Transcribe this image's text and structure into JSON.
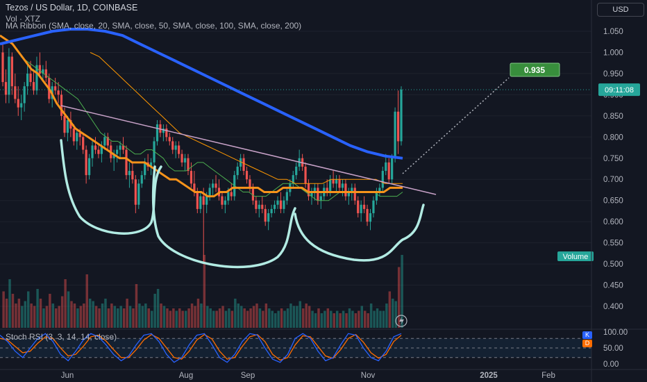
{
  "header": {
    "title": "Tezos / US Dollar, 1D, COINBASE",
    "volume_label": "Vol · XTZ",
    "ma_label": "MA Ribbon (SMA, close, 20, SMA, close, 50, SMA, close, 100, SMA, close, 200)",
    "currency_button": "USD"
  },
  "indicator": {
    "stoch_label": "Stoch RSI (3, 3, 14, 14, close)",
    "k_badge": "K",
    "d_badge": "D"
  },
  "colors": {
    "background": "#131722",
    "up": "#26a69a",
    "down": "#ef5350",
    "ma20": "#4caf50",
    "ma50": "#f7931a",
    "ma100": "#ff9800",
    "ma200": "#2962ff",
    "pattern": "#b2ebe3",
    "trendline": "#c8a2c8",
    "target": "#4caf50",
    "stoch_k": "#2962ff",
    "stoch_d": "#ff6d00"
  },
  "chart_data": {
    "type": "candlestick",
    "price_axis": {
      "ticks": [
        "1.050",
        "1.000",
        "0.950",
        "0.900",
        "0.850",
        "0.800",
        "0.750",
        "0.700",
        "0.650",
        "0.600",
        "0.550",
        "0.500",
        "0.450",
        "0.400"
      ],
      "ylim": [
        0.4,
        1.05
      ]
    },
    "time_axis": {
      "ticks": [
        "Jun",
        "Aug",
        "Sep",
        "Nov",
        "2025",
        "Feb"
      ]
    },
    "price_labels": {
      "target": "0.935",
      "countdown": "09:11:08",
      "current_price": 0.912,
      "volume_tag": "Volume"
    },
    "ohlc": [
      [
        1.0,
        1.02,
        0.92,
        0.93
      ],
      [
        0.93,
        0.96,
        0.88,
        0.9
      ],
      [
        0.9,
        1.01,
        0.88,
        0.99
      ],
      [
        0.99,
        1.0,
        0.9,
        0.92
      ],
      [
        0.92,
        0.95,
        0.88,
        0.89
      ],
      [
        0.89,
        0.92,
        0.85,
        0.87
      ],
      [
        0.87,
        0.9,
        0.84,
        0.88
      ],
      [
        0.88,
        0.93,
        0.86,
        0.92
      ],
      [
        0.92,
        0.97,
        0.9,
        0.95
      ],
      [
        0.95,
        0.98,
        0.92,
        0.93
      ],
      [
        0.93,
        0.96,
        0.9,
        0.91
      ],
      [
        0.91,
        0.99,
        0.9,
        0.97
      ],
      [
        0.97,
        1.0,
        0.94,
        0.95
      ],
      [
        0.95,
        0.97,
        0.93,
        0.96
      ],
      [
        0.96,
        0.98,
        0.93,
        0.94
      ],
      [
        0.94,
        0.95,
        0.88,
        0.89
      ],
      [
        0.89,
        0.93,
        0.87,
        0.92
      ],
      [
        0.92,
        0.94,
        0.9,
        0.91
      ],
      [
        0.91,
        0.93,
        0.88,
        0.9
      ],
      [
        0.9,
        0.91,
        0.84,
        0.85
      ],
      [
        0.85,
        0.87,
        0.8,
        0.81
      ],
      [
        0.81,
        0.85,
        0.79,
        0.84
      ],
      [
        0.84,
        0.86,
        0.8,
        0.82
      ],
      [
        0.82,
        0.83,
        0.78,
        0.79
      ],
      [
        0.79,
        0.82,
        0.77,
        0.81
      ],
      [
        0.81,
        0.82,
        0.78,
        0.8
      ],
      [
        0.8,
        0.81,
        0.76,
        0.77
      ],
      [
        0.77,
        0.78,
        0.69,
        0.71
      ],
      [
        0.71,
        0.76,
        0.7,
        0.75
      ],
      [
        0.75,
        0.79,
        0.73,
        0.78
      ],
      [
        0.78,
        0.8,
        0.76,
        0.77
      ],
      [
        0.77,
        0.78,
        0.75,
        0.76
      ],
      [
        0.76,
        0.79,
        0.74,
        0.78
      ],
      [
        0.78,
        0.81,
        0.77,
        0.8
      ],
      [
        0.8,
        0.81,
        0.77,
        0.78
      ],
      [
        0.78,
        0.79,
        0.74,
        0.75
      ],
      [
        0.75,
        0.77,
        0.72,
        0.76
      ],
      [
        0.76,
        0.78,
        0.74,
        0.77
      ],
      [
        0.77,
        0.79,
        0.75,
        0.78
      ],
      [
        0.78,
        0.8,
        0.76,
        0.77
      ],
      [
        0.77,
        0.78,
        0.7,
        0.71
      ],
      [
        0.71,
        0.74,
        0.68,
        0.72
      ],
      [
        0.72,
        0.74,
        0.69,
        0.7
      ],
      [
        0.7,
        0.71,
        0.62,
        0.64
      ],
      [
        0.64,
        0.7,
        0.63,
        0.69
      ],
      [
        0.69,
        0.72,
        0.68,
        0.71
      ],
      [
        0.71,
        0.75,
        0.7,
        0.74
      ],
      [
        0.74,
        0.76,
        0.72,
        0.73
      ],
      [
        0.73,
        0.75,
        0.71,
        0.74
      ],
      [
        0.74,
        0.8,
        0.73,
        0.79
      ],
      [
        0.79,
        0.84,
        0.78,
        0.83
      ],
      [
        0.83,
        0.84,
        0.8,
        0.81
      ],
      [
        0.81,
        0.83,
        0.79,
        0.82
      ],
      [
        0.82,
        0.83,
        0.79,
        0.8
      ],
      [
        0.8,
        0.81,
        0.78,
        0.79
      ],
      [
        0.79,
        0.8,
        0.76,
        0.77
      ],
      [
        0.77,
        0.79,
        0.75,
        0.78
      ],
      [
        0.78,
        0.79,
        0.75,
        0.76
      ],
      [
        0.76,
        0.77,
        0.73,
        0.74
      ],
      [
        0.74,
        0.76,
        0.72,
        0.75
      ],
      [
        0.75,
        0.76,
        0.71,
        0.72
      ],
      [
        0.72,
        0.74,
        0.68,
        0.69
      ],
      [
        0.69,
        0.72,
        0.66,
        0.67
      ],
      [
        0.67,
        0.68,
        0.62,
        0.63
      ],
      [
        0.63,
        0.67,
        0.62,
        0.66
      ],
      [
        0.66,
        0.68,
        0.5,
        0.64
      ],
      [
        0.64,
        0.67,
        0.62,
        0.66
      ],
      [
        0.66,
        0.69,
        0.65,
        0.68
      ],
      [
        0.68,
        0.7,
        0.66,
        0.69
      ],
      [
        0.69,
        0.71,
        0.67,
        0.68
      ],
      [
        0.68,
        0.7,
        0.65,
        0.66
      ],
      [
        0.66,
        0.67,
        0.63,
        0.64
      ],
      [
        0.64,
        0.66,
        0.62,
        0.65
      ],
      [
        0.65,
        0.68,
        0.64,
        0.67
      ],
      [
        0.67,
        0.69,
        0.65,
        0.66
      ],
      [
        0.66,
        0.72,
        0.65,
        0.71
      ],
      [
        0.71,
        0.74,
        0.7,
        0.73
      ],
      [
        0.73,
        0.76,
        0.72,
        0.75
      ],
      [
        0.75,
        0.76,
        0.71,
        0.72
      ],
      [
        0.72,
        0.73,
        0.69,
        0.7
      ],
      [
        0.7,
        0.71,
        0.67,
        0.68
      ],
      [
        0.68,
        0.69,
        0.64,
        0.65
      ],
      [
        0.65,
        0.66,
        0.62,
        0.63
      ],
      [
        0.63,
        0.65,
        0.61,
        0.64
      ],
      [
        0.64,
        0.66,
        0.62,
        0.63
      ],
      [
        0.63,
        0.64,
        0.59,
        0.6
      ],
      [
        0.6,
        0.63,
        0.58,
        0.62
      ],
      [
        0.62,
        0.64,
        0.61,
        0.63
      ],
      [
        0.63,
        0.65,
        0.62,
        0.64
      ],
      [
        0.64,
        0.66,
        0.63,
        0.65
      ],
      [
        0.65,
        0.67,
        0.62,
        0.63
      ],
      [
        0.63,
        0.66,
        0.62,
        0.65
      ],
      [
        0.65,
        0.68,
        0.64,
        0.67
      ],
      [
        0.67,
        0.7,
        0.66,
        0.69
      ],
      [
        0.69,
        0.72,
        0.68,
        0.71
      ],
      [
        0.71,
        0.74,
        0.7,
        0.73
      ],
      [
        0.73,
        0.77,
        0.72,
        0.75
      ],
      [
        0.75,
        0.76,
        0.72,
        0.73
      ],
      [
        0.73,
        0.74,
        0.68,
        0.69
      ],
      [
        0.69,
        0.7,
        0.65,
        0.66
      ],
      [
        0.66,
        0.68,
        0.64,
        0.67
      ],
      [
        0.67,
        0.69,
        0.65,
        0.68
      ],
      [
        0.68,
        0.69,
        0.64,
        0.65
      ],
      [
        0.65,
        0.67,
        0.63,
        0.66
      ],
      [
        0.66,
        0.69,
        0.65,
        0.68
      ],
      [
        0.68,
        0.7,
        0.66,
        0.67
      ],
      [
        0.67,
        0.71,
        0.66,
        0.7
      ],
      [
        0.7,
        0.72,
        0.68,
        0.69
      ],
      [
        0.69,
        0.71,
        0.67,
        0.7
      ],
      [
        0.7,
        0.71,
        0.67,
        0.68
      ],
      [
        0.68,
        0.7,
        0.66,
        0.69
      ],
      [
        0.69,
        0.7,
        0.65,
        0.66
      ],
      [
        0.66,
        0.68,
        0.64,
        0.67
      ],
      [
        0.67,
        0.69,
        0.65,
        0.68
      ],
      [
        0.68,
        0.69,
        0.64,
        0.65
      ],
      [
        0.65,
        0.66,
        0.61,
        0.62
      ],
      [
        0.62,
        0.65,
        0.6,
        0.64
      ],
      [
        0.64,
        0.66,
        0.62,
        0.63
      ],
      [
        0.63,
        0.64,
        0.59,
        0.6
      ],
      [
        0.6,
        0.63,
        0.58,
        0.62
      ],
      [
        0.62,
        0.66,
        0.61,
        0.65
      ],
      [
        0.65,
        0.68,
        0.64,
        0.67
      ],
      [
        0.67,
        0.69,
        0.66,
        0.68
      ],
      [
        0.68,
        0.73,
        0.67,
        0.72
      ],
      [
        0.72,
        0.76,
        0.71,
        0.74
      ],
      [
        0.74,
        0.75,
        0.69,
        0.7
      ],
      [
        0.7,
        0.76,
        0.69,
        0.75
      ],
      [
        0.75,
        0.87,
        0.74,
        0.86
      ],
      [
        0.86,
        0.91,
        0.76,
        0.79
      ],
      [
        0.79,
        0.92,
        0.78,
        0.912
      ]
    ],
    "volume": [
      0.15,
      0.12,
      0.2,
      0.14,
      0.1,
      0.12,
      0.09,
      0.11,
      0.15,
      0.1,
      0.09,
      0.16,
      0.12,
      0.08,
      0.09,
      0.14,
      0.1,
      0.08,
      0.09,
      0.13,
      0.2,
      0.15,
      0.11,
      0.1,
      0.08,
      0.09,
      0.1,
      0.22,
      0.12,
      0.11,
      0.09,
      0.08,
      0.1,
      0.12,
      0.08,
      0.1,
      0.09,
      0.08,
      0.09,
      0.08,
      0.12,
      0.09,
      0.08,
      0.18,
      0.1,
      0.09,
      0.1,
      0.08,
      0.07,
      0.14,
      0.16,
      0.1,
      0.09,
      0.08,
      0.07,
      0.08,
      0.07,
      0.08,
      0.07,
      0.07,
      0.08,
      0.1,
      0.09,
      0.12,
      0.1,
      0.3,
      0.09,
      0.08,
      0.07,
      0.07,
      0.08,
      0.09,
      0.07,
      0.08,
      0.07,
      0.12,
      0.1,
      0.09,
      0.08,
      0.07,
      0.08,
      0.09,
      0.1,
      0.08,
      0.07,
      0.1,
      0.08,
      0.07,
      0.06,
      0.07,
      0.08,
      0.07,
      0.08,
      0.1,
      0.09,
      0.09,
      0.11,
      0.08,
      0.1,
      0.09,
      0.07,
      0.06,
      0.08,
      0.06,
      0.07,
      0.08,
      0.07,
      0.06,
      0.07,
      0.06,
      0.07,
      0.06,
      0.08,
      0.07,
      0.06,
      0.07,
      0.09,
      0.07,
      0.06,
      0.1,
      0.07,
      0.08,
      0.07,
      0.07,
      0.1,
      0.15,
      0.12,
      0.11,
      0.25,
      0.3,
      0.28
    ],
    "ma20": [
      0.99,
      0.98,
      0.97,
      0.96,
      0.95,
      0.94,
      0.93,
      0.92,
      0.91,
      0.9,
      0.89,
      0.87,
      0.85,
      0.83,
      0.81,
      0.8,
      0.79,
      0.79,
      0.78,
      0.77,
      0.76,
      0.76,
      0.77,
      0.77,
      0.76,
      0.75,
      0.73,
      0.72,
      0.72,
      0.72,
      0.73,
      0.74,
      0.74,
      0.73,
      0.72,
      0.71,
      0.7,
      0.69,
      0.68,
      0.67,
      0.67,
      0.66,
      0.66,
      0.66,
      0.67,
      0.68,
      0.69,
      0.69,
      0.69,
      0.68,
      0.67,
      0.66,
      0.65,
      0.65,
      0.65,
      0.66,
      0.67,
      0.67,
      0.67,
      0.67,
      0.67,
      0.67,
      0.67,
      0.66,
      0.66,
      0.66,
      0.66,
      0.67
    ],
    "ma50": [
      1.04,
      1.03,
      1.02,
      1.0,
      0.98,
      0.96,
      0.95,
      0.93,
      0.91,
      0.88,
      0.86,
      0.84,
      0.82,
      0.81,
      0.8,
      0.79,
      0.78,
      0.77,
      0.76,
      0.75,
      0.75,
      0.74,
      0.74,
      0.74,
      0.73,
      0.72,
      0.71,
      0.7,
      0.7,
      0.69,
      0.68,
      0.67,
      0.67,
      0.66,
      0.66,
      0.67,
      0.67,
      0.68,
      0.68,
      0.68,
      0.68,
      0.68,
      0.67,
      0.67,
      0.67,
      0.68,
      0.68,
      0.68,
      0.68,
      0.67,
      0.67,
      0.67,
      0.67,
      0.67,
      0.67,
      0.67,
      0.67,
      0.67,
      0.67,
      0.67,
      0.67,
      0.67,
      0.68,
      0.68,
      0.68
    ],
    "ma100": [
      1.0,
      0.99,
      0.97,
      0.95,
      0.93,
      0.91,
      0.89,
      0.87,
      0.85,
      0.83,
      0.81,
      0.8,
      0.79,
      0.78,
      0.77,
      0.76,
      0.75,
      0.74,
      0.73,
      0.72,
      0.71,
      0.7,
      0.7,
      0.69,
      0.69,
      0.69,
      0.69,
      0.7,
      0.7,
      0.7,
      0.7,
      0.7,
      0.7,
      0.69,
      0.69,
      0.69
    ],
    "ma200": [
      1.02,
      1.03,
      1.04,
      1.05,
      1.055,
      1.055,
      1.05,
      1.04,
      1.02,
      1.0,
      0.98,
      0.96,
      0.94,
      0.92,
      0.9,
      0.88,
      0.86,
      0.84,
      0.82,
      0.8,
      0.78,
      0.765,
      0.755,
      0.75
    ],
    "stoch_rsi": {
      "axis_ticks": [
        "100.00",
        "50.00",
        "0.00"
      ],
      "k": [
        90,
        70,
        40,
        20,
        50,
        80,
        95,
        70,
        30,
        10,
        40,
        75,
        95,
        85,
        60,
        30,
        10,
        25,
        60,
        90,
        95,
        70,
        30,
        5,
        20,
        60,
        90,
        95,
        60,
        20,
        5,
        30,
        70,
        95,
        90,
        50,
        15,
        5,
        30,
        80,
        95,
        80,
        40,
        10,
        20,
        60,
        95,
        90,
        50,
        20,
        10,
        40,
        85,
        95
      ],
      "d": [
        80,
        75,
        55,
        35,
        40,
        65,
        85,
        80,
        50,
        25,
        30,
        55,
        85,
        90,
        72,
        45,
        20,
        20,
        45,
        75,
        92,
        80,
        50,
        20,
        15,
        40,
        75,
        92,
        78,
        40,
        15,
        20,
        55,
        85,
        92,
        70,
        30,
        12,
        20,
        60,
        88,
        85,
        55,
        25,
        18,
        45,
        80,
        92,
        68,
        35,
        18,
        30,
        70,
        90
      ]
    }
  }
}
